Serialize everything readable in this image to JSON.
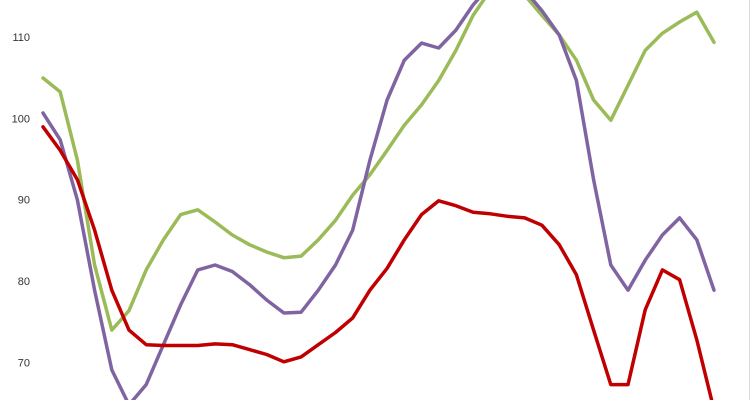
{
  "chart_data": {
    "type": "line",
    "categories": [
      null,
      null,
      null,
      null,
      null,
      null,
      null,
      null,
      null,
      null,
      null,
      null,
      null,
      null,
      null,
      null,
      null,
      null,
      null,
      null,
      null,
      null,
      null,
      null,
      null,
      null,
      null,
      null,
      null,
      null,
      null,
      null,
      null,
      null,
      null,
      null,
      null,
      null,
      null,
      null
    ],
    "series": [
      {
        "color": "#9bbb59",
        "values": [
          105.1,
          103.4,
          95.0,
          82.1,
          74.1,
          76.5,
          81.5,
          85.2,
          88.3,
          88.9,
          87.4,
          85.8,
          84.6,
          83.7,
          83.0,
          83.2,
          85.2,
          87.6,
          90.7,
          93.2,
          96.2,
          99.3,
          101.8,
          104.8,
          108.5,
          112.8,
          115.9,
          116.5,
          115.3,
          112.8,
          110.4,
          107.3,
          102.4,
          99.9,
          104.2,
          108.5,
          110.6,
          112.0,
          113.2,
          109.5
        ]
      },
      {
        "color": "#8064a2",
        "values": [
          100.8,
          97.5,
          90.1,
          79.0,
          69.2,
          64.9,
          67.4,
          72.3,
          77.2,
          81.5,
          82.1,
          81.3,
          79.7,
          77.8,
          76.2,
          76.3,
          79.0,
          82.1,
          86.4,
          95.0,
          102.4,
          107.3,
          109.4,
          108.8,
          111.0,
          114.1,
          116.5,
          117.1,
          115.9,
          113.4,
          110.4,
          104.8,
          92.6,
          82.1,
          79.0,
          82.7,
          85.8,
          87.9,
          85.2,
          79.0
        ]
      },
      {
        "color": "#c00000",
        "values": [
          99.1,
          96.2,
          92.6,
          86.4,
          79.0,
          74.1,
          72.3,
          72.2,
          72.2,
          72.2,
          72.4,
          72.3,
          71.7,
          71.1,
          70.2,
          70.8,
          72.3,
          73.8,
          75.6,
          79.0,
          81.7,
          85.2,
          88.3,
          90.0,
          89.4,
          88.6,
          88.4,
          88.1,
          87.9,
          87.0,
          84.6,
          80.9,
          74.1,
          67.4,
          67.4,
          76.6,
          81.5,
          80.3,
          72.9,
          64.3
        ]
      }
    ],
    "ylim": [
      65.5,
      114.7
    ],
    "yticks": [
      70,
      80,
      90,
      100,
      110
    ]
  }
}
